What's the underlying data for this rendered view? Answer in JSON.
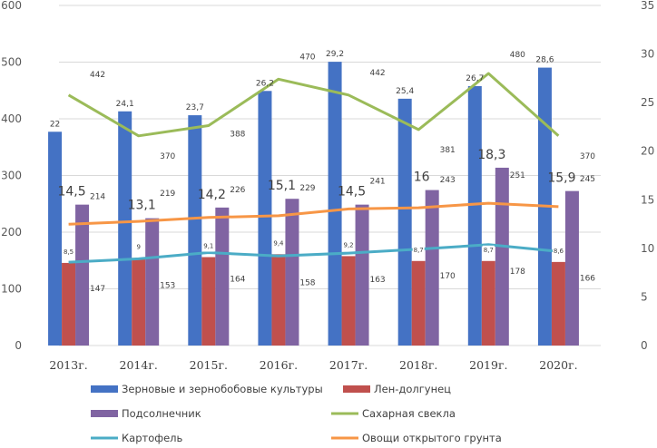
{
  "chart_data": {
    "type": "bar",
    "title": "",
    "xlabel": "",
    "ylabel": "",
    "categories": [
      "2013г.",
      "2014г.",
      "2015г.",
      "2016г.",
      "2017г.",
      "2018г.",
      "2019г.",
      "2020г."
    ],
    "primary_axis": {
      "side": "left",
      "ylim": [
        0,
        600
      ],
      "ticks": [
        0,
        100,
        200,
        300,
        400,
        500,
        600
      ]
    },
    "secondary_axis": {
      "side": "right",
      "ylim": [
        0,
        35
      ],
      "ticks": [
        0,
        5,
        10,
        15,
        20,
        25,
        30,
        35
      ]
    },
    "grid": true,
    "legend_position": "bottom",
    "series": [
      {
        "name": "Зерновые и зернобобовые культуры",
        "kind": "bar",
        "axis": "secondary",
        "color": "#4472C4",
        "values": [
          22,
          24.1,
          23.7,
          26.2,
          29.2,
          25.4,
          26.7,
          28.6
        ],
        "labels": [
          "22",
          "24,1",
          "23,7",
          "26,2",
          "29,2",
          "25,4",
          "26,7",
          "28,6"
        ]
      },
      {
        "name": "Лен-долгунец",
        "kind": "bar",
        "axis": "secondary",
        "color": "#C0504D",
        "values": [
          8.5,
          9,
          9.1,
          9.4,
          9.2,
          8.7,
          8.7,
          8.6
        ],
        "labels": [
          "8,5",
          "9",
          "9,1",
          "9,4",
          "9,2",
          "8,7",
          "8,7",
          "8,6"
        ]
      },
      {
        "name": "Подсолнечник",
        "kind": "bar",
        "axis": "secondary",
        "color": "#8064A2",
        "values": [
          14.5,
          13.1,
          14.2,
          15.1,
          14.5,
          16,
          18.3,
          15.9
        ],
        "labels": [
          "14,5",
          "13,1",
          "14,2",
          "15,1",
          "14,5",
          "16",
          "18,3",
          "15,9"
        ]
      },
      {
        "name": "Сахарная свекла",
        "kind": "line",
        "axis": "primary",
        "color": "#9BBB59",
        "values": [
          442,
          370,
          388,
          470,
          442,
          381,
          480,
          370
        ],
        "labels": [
          "442",
          "370",
          "388",
          "470",
          "442",
          "381",
          "480",
          "370"
        ]
      },
      {
        "name": "Картофель",
        "kind": "line",
        "axis": "primary",
        "color": "#4BACC6",
        "values": [
          147,
          153,
          164,
          158,
          163,
          170,
          178,
          166
        ],
        "labels": [
          "147",
          "153",
          "164",
          "158",
          "163",
          "170",
          "178",
          "166"
        ]
      },
      {
        "name": "Овощи открытого грунта",
        "kind": "line",
        "axis": "primary",
        "color": "#F79646",
        "values": [
          214,
          219,
          226,
          229,
          241,
          243,
          251,
          245
        ],
        "labels": [
          "214",
          "219",
          "226",
          "229",
          "241",
          "243",
          "251",
          "245"
        ]
      }
    ]
  },
  "colors": {
    "grid": "#D9D9D9",
    "axis_text": "#595959"
  }
}
